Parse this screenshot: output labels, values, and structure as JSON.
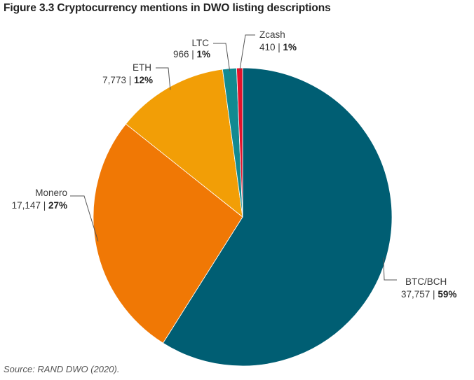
{
  "chart_data": {
    "type": "pie",
    "title": "Figure 3.3 Cryptocurrency mentions in DWO listing descriptions",
    "source": "Source: RAND DWO (2020).",
    "slices": [
      {
        "name": "BTC/BCH",
        "value": 37757,
        "value_label": "37,757",
        "percent_label": "59%",
        "color": "#005e73"
      },
      {
        "name": "Monero",
        "value": 17147,
        "value_label": "17,147",
        "percent_label": "27%",
        "color": "#f07805"
      },
      {
        "name": "ETH",
        "value": 7773,
        "value_label": "7,773",
        "percent_label": "12%",
        "color": "#f29e06"
      },
      {
        "name": "LTC",
        "value": 966,
        "value_label": "966",
        "percent_label": "1%",
        "color": "#118a91"
      },
      {
        "name": "Zcash",
        "value": 410,
        "value_label": "410",
        "percent_label": "1%",
        "color": "#e4122b"
      }
    ]
  }
}
